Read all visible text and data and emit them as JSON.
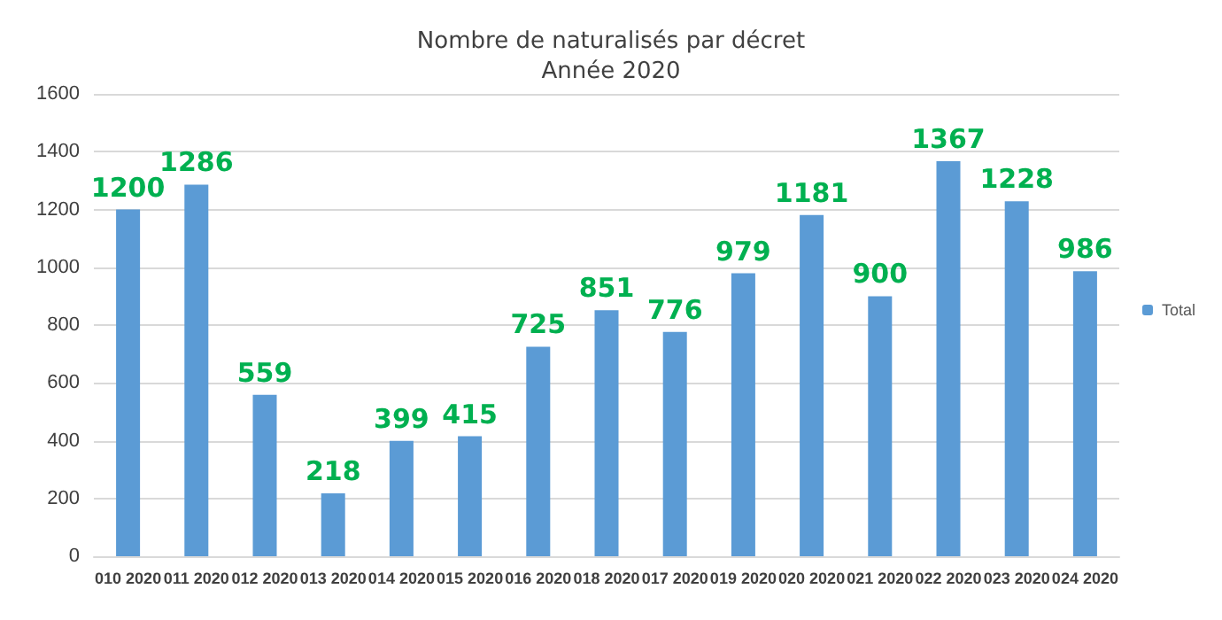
{
  "chart_data": {
    "type": "bar",
    "title": "Nombre de naturalisés par décret\nAnnée 2020",
    "categories": [
      "010 2020",
      "011 2020",
      "012 2020",
      "013 2020",
      "014 2020",
      "015 2020",
      "016 2020",
      "018 2020",
      "017 2020",
      "019 2020",
      "020 2020",
      "021 2020",
      "022 2020",
      "023 2020",
      "024 2020"
    ],
    "series": [
      {
        "name": "Total",
        "color": "#5b9bd5",
        "values": [
          1200,
          1286,
          559,
          218,
          399,
          415,
          725,
          851,
          776,
          979,
          1181,
          900,
          1367,
          1228,
          986
        ]
      }
    ],
    "ylim": [
      0,
      1600
    ],
    "yticks": [
      0,
      200,
      400,
      600,
      800,
      1000,
      1200,
      1400,
      1600
    ],
    "grid": "y",
    "legend": "right",
    "data_labels": true
  }
}
